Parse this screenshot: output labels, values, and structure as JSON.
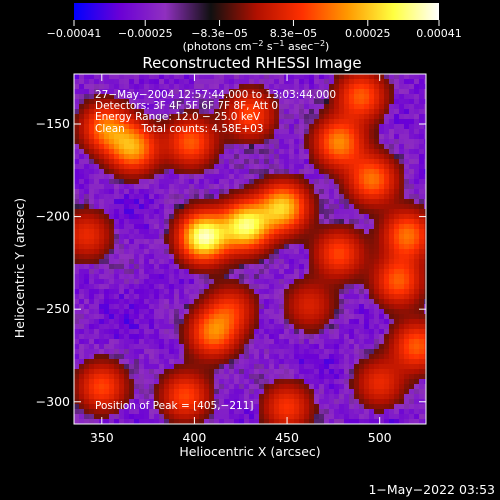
{
  "chart_data": {
    "type": "heatmap",
    "title": "Reconstructed RHESSI Image",
    "xlabel": "Heliocentric X (arcsec)",
    "ylabel": "Heliocentric Y (arcsec)",
    "xlim": [
      335,
      525
    ],
    "ylim": [
      -312,
      -123
    ],
    "xticks": [
      350,
      400,
      450,
      500
    ],
    "yticks": [
      -300,
      -250,
      -200,
      -150
    ],
    "xtick_labels": [
      "350",
      "400",
      "450",
      "500"
    ],
    "ytick_labels": [
      "−300",
      "−250",
      "−200",
      "−150"
    ],
    "colorbar": {
      "min": -0.00041,
      "max": 0.00041,
      "ticks": [
        -0.00041,
        -0.00025,
        -8.3e-05,
        8.3e-05,
        0.00025,
        0.00041
      ],
      "tick_labels": [
        "−0.00041",
        "−0.00025",
        "−8.3e−05",
        "8.3e−05",
        "0.00025",
        "0.00041"
      ],
      "unit_parts": {
        "open": "(photons cm",
        "e1": "−2",
        "s": " s",
        "e2": "−1",
        "a": " asec",
        "e3": "−2",
        "close": ")"
      },
      "colors": [
        "#0000ff",
        "#6a00d6",
        "#9030c0",
        "#101010",
        "#b01000",
        "#ff3000",
        "#ff9900",
        "#ffff40",
        "#ffffff"
      ]
    },
    "annotations": [
      "27−May−2004 12:57:44.000 to 13:03:44.000",
      "Detectors: 3F 4F 5F 6F 7F 8F, Att 0",
      "Energy Range: 12.0 − 25.0 keV",
      "Clean     Total counts: 4.58E+03"
    ],
    "peak_label": "Position of Peak = [405,−211]",
    "peak": [
      405,
      -211
    ],
    "sources": [
      {
        "x": 405,
        "y": -211,
        "intensity": 1.0
      },
      {
        "x": 428,
        "y": -205,
        "intensity": 0.9
      },
      {
        "x": 448,
        "y": -195,
        "intensity": 0.75
      },
      {
        "x": 367,
        "y": -163,
        "intensity": 0.65
      },
      {
        "x": 352,
        "y": -152,
        "intensity": 0.55
      },
      {
        "x": 398,
        "y": -160,
        "intensity": 0.5
      },
      {
        "x": 430,
        "y": -145,
        "intensity": 0.45
      },
      {
        "x": 478,
        "y": -160,
        "intensity": 0.6
      },
      {
        "x": 496,
        "y": -180,
        "intensity": 0.55
      },
      {
        "x": 490,
        "y": -135,
        "intensity": 0.5
      },
      {
        "x": 515,
        "y": -210,
        "intensity": 0.55
      },
      {
        "x": 510,
        "y": -235,
        "intensity": 0.5
      },
      {
        "x": 478,
        "y": -220,
        "intensity": 0.45
      },
      {
        "x": 410,
        "y": -263,
        "intensity": 0.55
      },
      {
        "x": 420,
        "y": -250,
        "intensity": 0.35
      },
      {
        "x": 342,
        "y": -210,
        "intensity": 0.35
      },
      {
        "x": 350,
        "y": -292,
        "intensity": 0.45
      },
      {
        "x": 395,
        "y": -297,
        "intensity": 0.45
      },
      {
        "x": 450,
        "y": -303,
        "intensity": 0.4
      },
      {
        "x": 500,
        "y": -290,
        "intensity": 0.35
      },
      {
        "x": 520,
        "y": -270,
        "intensity": 0.5
      },
      {
        "x": 462,
        "y": -248,
        "intensity": 0.3
      }
    ]
  },
  "footer": {
    "timestamp": "1−May−2022 03:53"
  }
}
